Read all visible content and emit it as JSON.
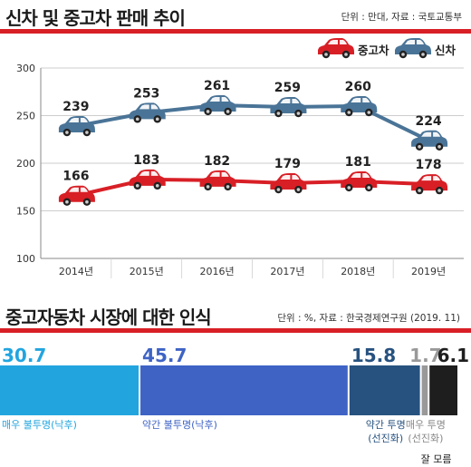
{
  "header": {
    "title": "신차 및 중고차 판매 추이",
    "source": "단위 : 만대, 자료 : 국토교통부"
  },
  "section2": {
    "title": "중고자동차 시장에 대한 인식",
    "source": "단위 : %, 자료 : 한국경제연구원 (2019. 11)"
  },
  "colors": {
    "used": "#d81f26",
    "new": "#4a7497",
    "accent": "#d81f26"
  },
  "chart_data": [
    {
      "type": "line",
      "title": "신차 및 중고차 판매 추이",
      "x": [
        "2014년",
        "2015년",
        "2016년",
        "2017년",
        "2018년",
        "2019년"
      ],
      "ylim": [
        100,
        300
      ],
      "yticks": [
        100,
        150,
        200,
        250,
        300
      ],
      "grid": true,
      "legend_position": "top-right",
      "series": [
        {
          "name": "중고차",
          "values": [
            166,
            183,
            182,
            179,
            181,
            178
          ],
          "color": "#d81f26",
          "icon": "car-icon"
        },
        {
          "name": "신차",
          "values": [
            239,
            253,
            261,
            259,
            260,
            224
          ],
          "color": "#4a7497",
          "icon": "car-icon"
        }
      ]
    },
    {
      "type": "bar",
      "orientation": "stacked-horizontal",
      "title": "중고자동차 시장에 대한 인식",
      "categories": [
        {
          "label": "매우 불투명(낙후)",
          "label2": "",
          "value": 30.7,
          "color": "#22a5df",
          "value_color": "#22a5df",
          "label_color": "#22a5df"
        },
        {
          "label": "약간 불투명(낙후)",
          "label2": "",
          "value": 45.7,
          "color": "#3e63c5",
          "value_color": "#3e63c5",
          "label_color": "#3e63c5"
        },
        {
          "label": "약간 투명",
          "label2": "(선진화)",
          "value": 15.8,
          "color": "#27527f",
          "value_color": "#27527f",
          "label_color": "#27527f"
        },
        {
          "label": "매우 투명",
          "label2": "(선진화)",
          "value": 1.7,
          "color": "#999999",
          "value_color": "#999999",
          "label_color": "#888888"
        },
        {
          "label": "잘 모름",
          "label2": "",
          "value": 6.1,
          "color": "#1e1e1e",
          "value_color": "#1e1e1e",
          "label_color": "#1e1e1e"
        }
      ]
    }
  ]
}
